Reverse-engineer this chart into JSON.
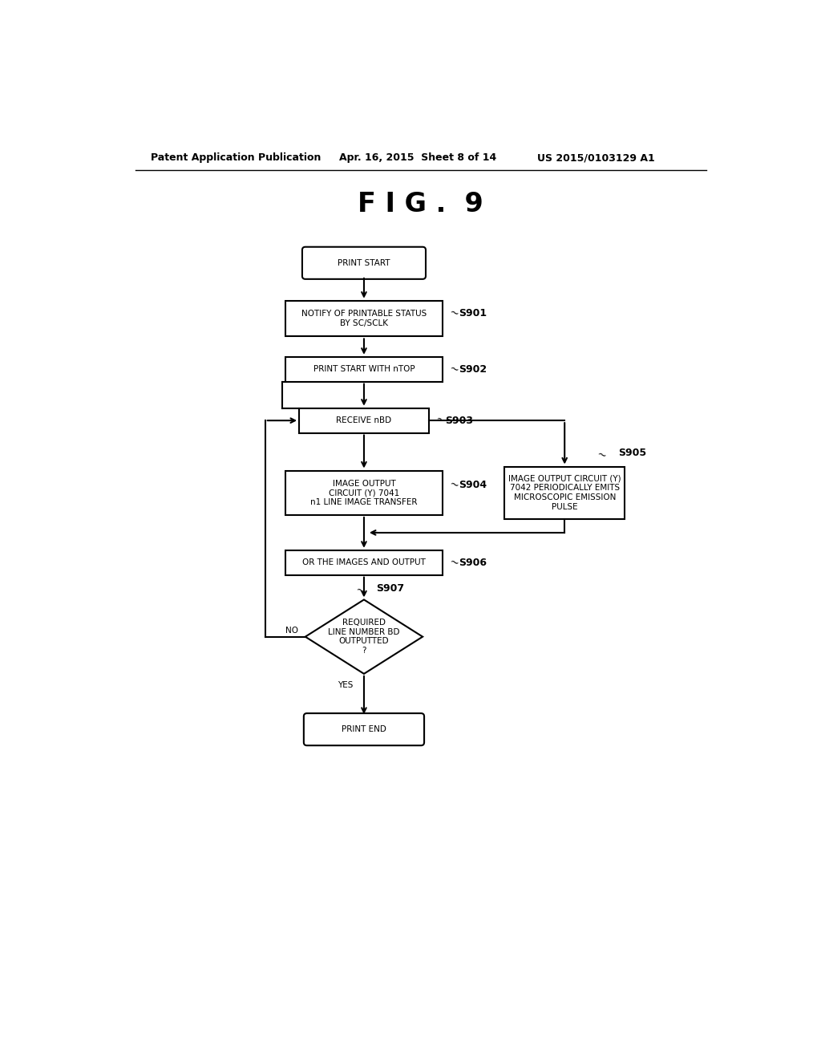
{
  "fig_title": "F I G .  9",
  "header_left": "Patent Application Publication",
  "header_mid": "Apr. 16, 2015  Sheet 8 of 14",
  "header_right": "US 2015/0103129 A1",
  "bg_color": "#ffffff",
  "node_print_start": "PRINT START",
  "node_s901": "NOTIFY OF PRINTABLE STATUS\nBY SC/SCLK",
  "node_s902": "PRINT START WITH nTOP",
  "node_s903": "RECEIVE nBD",
  "node_s904": "IMAGE OUTPUT\nCIRCUIT (Y) 7041\nn1 LINE IMAGE TRANSFER",
  "node_s905": "IMAGE OUTPUT CIRCUIT (Y)\n7042 PERIODICALLY EMITS\nMICROSCOPIC EMISSION\nPULSE",
  "node_s906": "OR THE IMAGES AND OUTPUT",
  "node_s907": "REQUIRED\nLINE NUMBER BD\nOUTPUTTED\n?",
  "node_print_end": "PRINT END",
  "label_s901": "S901",
  "label_s902": "S902",
  "label_s903": "S903",
  "label_s904": "S904",
  "label_s905": "S905",
  "label_s906": "S906",
  "label_s907": "S907",
  "label_no": "NO",
  "label_yes": "YES",
  "font_size_node": 7.5,
  "font_size_step": 9,
  "font_size_header": 9,
  "font_size_title": 24
}
